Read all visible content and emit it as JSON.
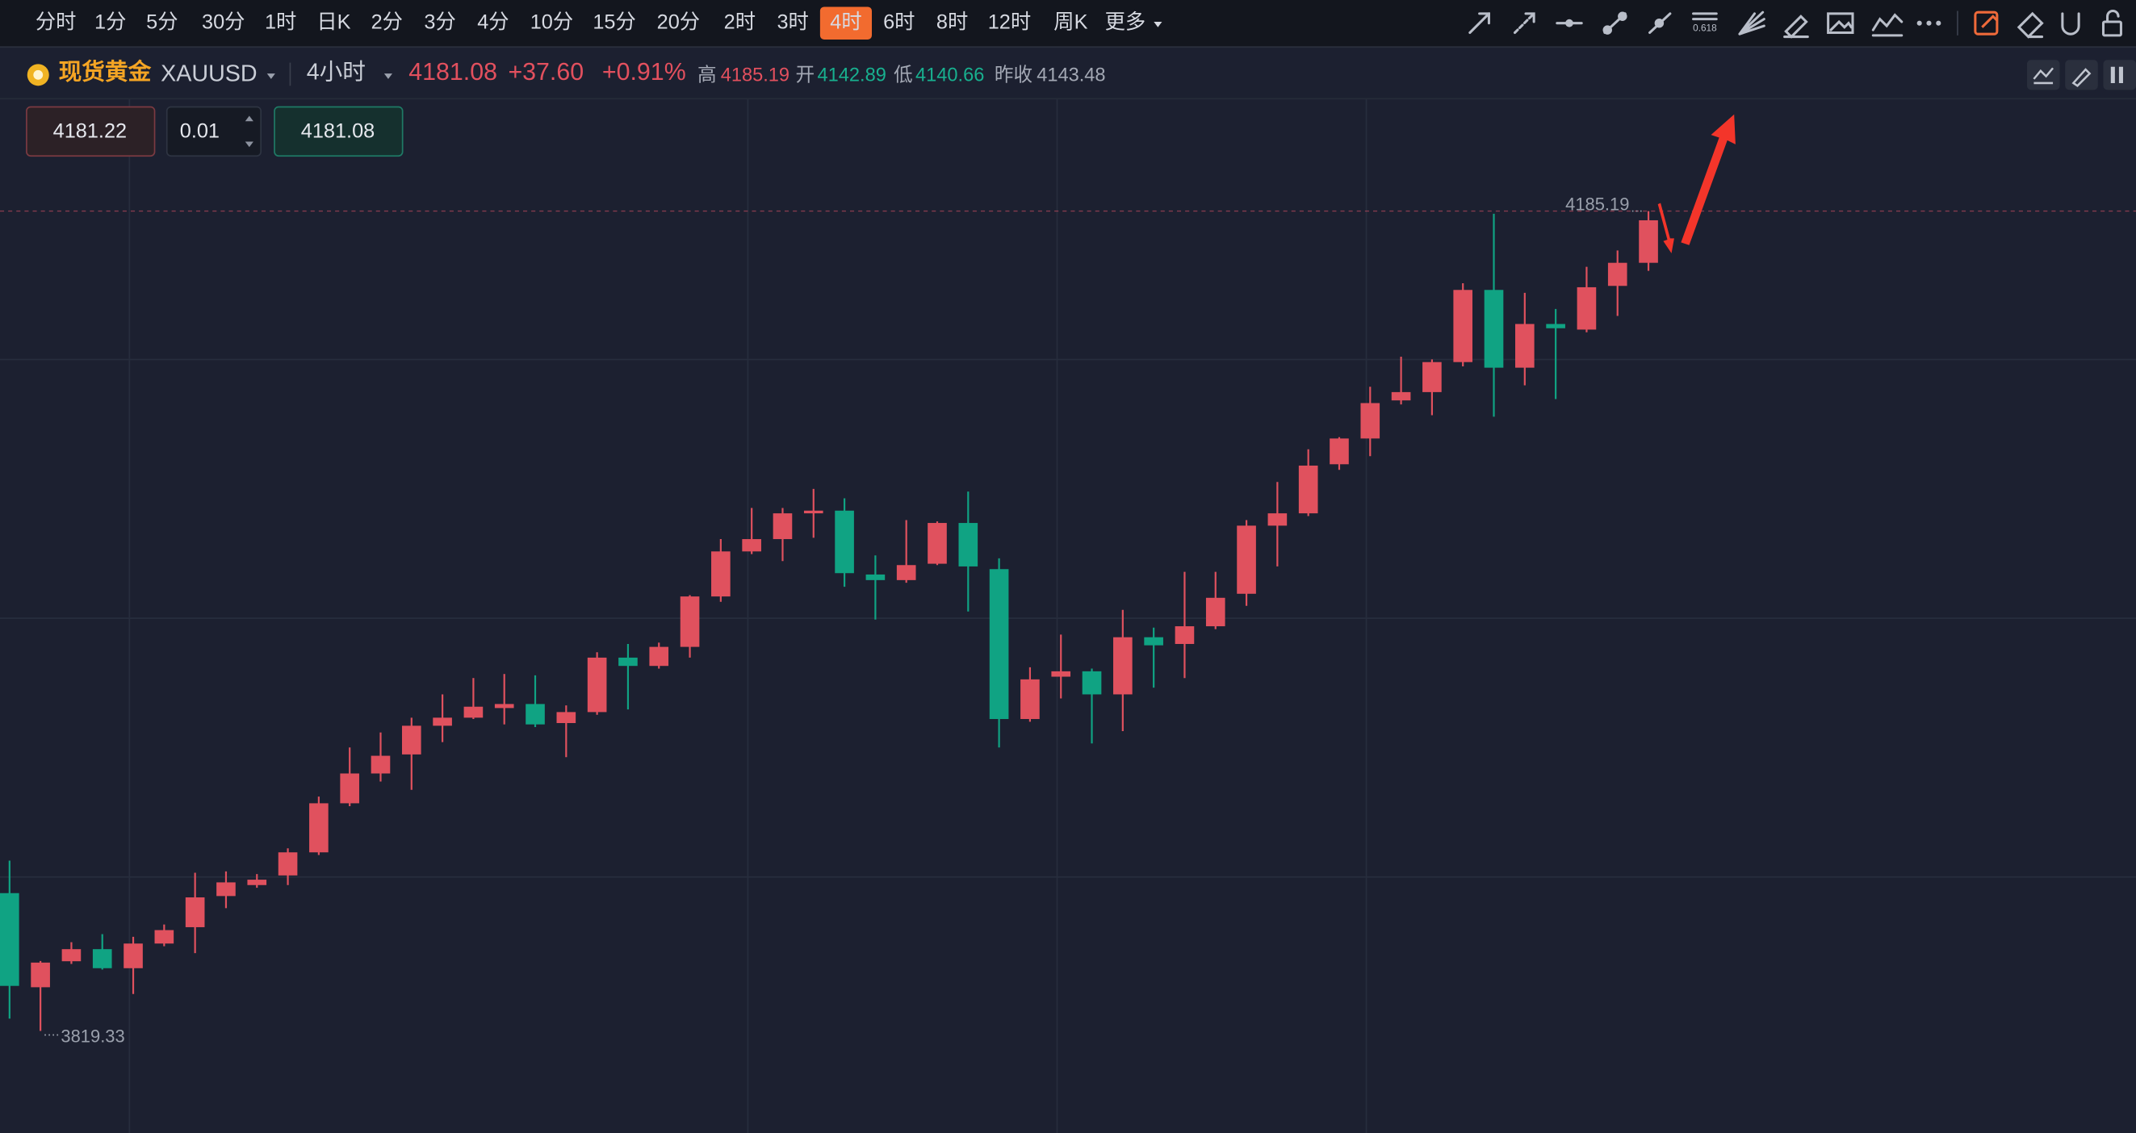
{
  "toolbar": {
    "timeframes": [
      "分时",
      "1分",
      "5分",
      "30分",
      "1时",
      "日K",
      "2分",
      "3分",
      "4分",
      "10分",
      "15分",
      "20分",
      "2时",
      "3时",
      "4时",
      "6时",
      "8时",
      "12时",
      "周K",
      "更多"
    ],
    "fib_icon": "0.618"
  },
  "header": {
    "name": "现货黄金",
    "symbol": "XAUUSD",
    "interval": "4小时",
    "price": "4181.08",
    "change": "+37.60",
    "change_pct": "+0.91%",
    "high_label": "高",
    "high": "4185.19",
    "open_label": "开",
    "open": "4142.89",
    "low_label": "低",
    "low": "4140.66",
    "prev_label": "昨收",
    "prev": "4143.48"
  },
  "order": {
    "bid": "4181.22",
    "qty": "0.01",
    "ask": "4181.08"
  },
  "chart_data": {
    "type": "candlestick",
    "up_color": "#e0515e",
    "down_color": "#10a383",
    "open": [
      3880.8,
      3838.8,
      3850.4,
      3855.8,
      3847.3,
      3858.3,
      3865.6,
      3879.5,
      3884.4,
      3888.7,
      3899.0,
      3920.9,
      3934.2,
      3942.7,
      3955.5,
      3959.1,
      3963.4,
      3965.2,
      3956.7,
      3961.6,
      3985.9,
      3982.2,
      3990.7,
      4013.2,
      4033.3,
      4038.8,
      4050.3,
      4051.5,
      4023.0,
      4020.5,
      4027.8,
      4046.0,
      4025.4,
      3958.5,
      3977.4,
      3979.8,
      3969.5,
      3995.0,
      3992.0,
      3999.9,
      4014.4,
      4044.8,
      4050.3,
      4072.2,
      4083.7,
      4100.7,
      4104.4,
      4117.8,
      4150.0,
      4115.3,
      4134.8,
      4132.3,
      4151.8,
      4162.1
    ],
    "close": [
      3839.4,
      3849.8,
      3855.8,
      3847.3,
      3858.3,
      3864.3,
      3878.9,
      3885.6,
      3886.8,
      3899.0,
      3920.9,
      3934.2,
      3942.1,
      3955.5,
      3959.1,
      3964.0,
      3965.2,
      3956.1,
      3961.6,
      3985.9,
      3982.2,
      3990.7,
      4013.2,
      4033.3,
      4038.8,
      4050.3,
      4051.5,
      4023.6,
      4020.5,
      4027.2,
      4046.0,
      4026.6,
      3958.5,
      3976.2,
      3979.8,
      3969.5,
      3995.0,
      3991.4,
      3999.9,
      4012.6,
      4044.8,
      4050.3,
      4071.6,
      4083.7,
      4099.5,
      4104.4,
      4117.8,
      4150.0,
      4115.3,
      4134.8,
      4132.9,
      4151.2,
      4162.1,
      4181.08
    ],
    "high": [
      3895.3,
      3850.5,
      3858.9,
      3862.5,
      3861.3,
      3866.8,
      3889.9,
      3890.5,
      3889.3,
      3900.8,
      3923.9,
      3945.8,
      3952.5,
      3959.1,
      3969.5,
      3976.8,
      3978.6,
      3978.0,
      3964.6,
      3988.3,
      3992.0,
      3992.6,
      4013.8,
      4038.8,
      4052.7,
      4052.7,
      4061.2,
      4057.0,
      4031.5,
      4047.3,
      4046.7,
      4060.0,
      4030.2,
      3981.6,
      3996.2,
      3981.0,
      4007.2,
      3999.3,
      4024.2,
      4024.2,
      4047.3,
      4064.3,
      4078.9,
      4084.3,
      4106.8,
      4120.2,
      4119.0,
      4153.0,
      4184.0,
      4148.7,
      4141.5,
      4160.3,
      4167.6,
      4185.19
    ],
    "low": [
      3824.8,
      3819.33,
      3849.2,
      3846.7,
      3835.8,
      3857.1,
      3854.0,
      3874.1,
      3883.2,
      3884.4,
      3897.8,
      3919.6,
      3930.6,
      3926.9,
      3948.2,
      3958.5,
      3956.1,
      3954.9,
      3941.5,
      3960.4,
      3962.8,
      3981.0,
      3985.9,
      4010.8,
      4032.1,
      4029.0,
      4039.4,
      4017.5,
      4002.9,
      4019.3,
      4027.2,
      4006.5,
      3945.8,
      3957.3,
      3967.7,
      3947.6,
      3953.1,
      3972.5,
      3976.8,
      3998.6,
      4009.0,
      4026.6,
      4049.1,
      4069.7,
      4075.8,
      4098.9,
      4094.1,
      4115.9,
      4093.4,
      4107.4,
      4101.3,
      4131.1,
      4138.4,
      4158.5
    ]
  }
}
